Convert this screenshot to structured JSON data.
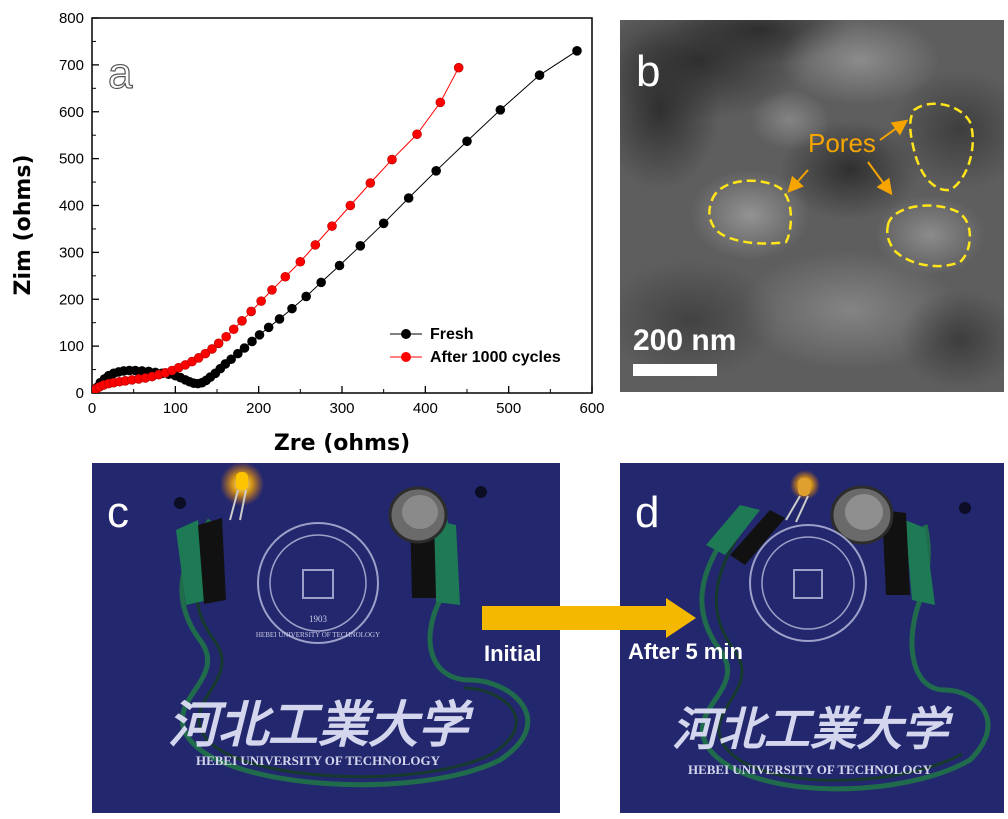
{
  "chart_data": {
    "type": "scatter",
    "panel_label": "a",
    "xlabel": "Zre (ohms)",
    "ylabel": "Zim (ohms)",
    "xlim": [
      0,
      600
    ],
    "ylim": [
      0,
      800
    ],
    "x_ticks": [
      "0",
      "100",
      "200",
      "300",
      "400",
      "500",
      "600"
    ],
    "y_ticks": [
      "0",
      "100",
      "200",
      "300",
      "400",
      "500",
      "600",
      "700",
      "800"
    ],
    "legend_position": "bottom-right",
    "series": [
      {
        "name": "Fresh",
        "color": "#000000",
        "x": [
          2,
          6,
          10,
          15,
          20,
          26,
          32,
          38,
          45,
          52,
          60,
          68,
          76,
          84,
          92,
          100,
          106,
          112,
          117,
          122,
          127,
          132,
          137,
          142,
          148,
          154,
          160,
          167,
          175,
          183,
          192,
          201,
          212,
          225,
          240,
          257,
          275,
          297,
          322,
          350,
          380,
          413,
          450,
          490,
          537,
          582
        ],
        "y": [
          5,
          12,
          22,
          30,
          37,
          42,
          45,
          47,
          48,
          48,
          47,
          46,
          44,
          42,
          40,
          37,
          33,
          28,
          24,
          21,
          20,
          22,
          27,
          34,
          42,
          52,
          62,
          72,
          84,
          96,
          110,
          124,
          140,
          158,
          180,
          206,
          236,
          272,
          314,
          362,
          416,
          474,
          537,
          604,
          678,
          730
        ]
      },
      {
        "name": "After 1000 cycles",
        "color": "#ff0000",
        "x": [
          2,
          5,
          9,
          14,
          20,
          26,
          33,
          40,
          48,
          56,
          64,
          72,
          80,
          88,
          96,
          104,
          112,
          120,
          128,
          136,
          144,
          152,
          161,
          170,
          180,
          191,
          203,
          216,
          232,
          250,
          268,
          288,
          310,
          334,
          360,
          390,
          418,
          440
        ],
        "y": [
          5,
          9,
          13,
          17,
          20,
          22,
          24,
          26,
          28,
          30,
          32,
          35,
          39,
          43,
          48,
          54,
          60,
          67,
          75,
          84,
          94,
          106,
          120,
          136,
          154,
          174,
          196,
          220,
          248,
          280,
          316,
          356,
          400,
          448,
          498,
          552,
          620,
          694
        ]
      }
    ]
  },
  "panels": {
    "b": {
      "label": "b",
      "annotation": "Pores",
      "scale_text": "200 nm",
      "annotation_color": "#f5a400",
      "outline_color": "#ffe51a"
    },
    "c": {
      "label": "c",
      "stage": "Initial"
    },
    "d": {
      "label": "d",
      "stage": "After 5 min"
    },
    "photo_text": {
      "seal_year": "1903",
      "seal_ring_text": "HEBEI UNIVERSITY OF TECHNOLOGY",
      "chinese_name": "河北工業大学",
      "english_name_c": "HEBEI UNIVERSITY OF TECHNOLOGY",
      "english_name_d": "HEBEI UNIVERSITY OF TECHNOLOGY"
    },
    "arrow_color": "#f5b800",
    "board_color": "#262b73"
  }
}
